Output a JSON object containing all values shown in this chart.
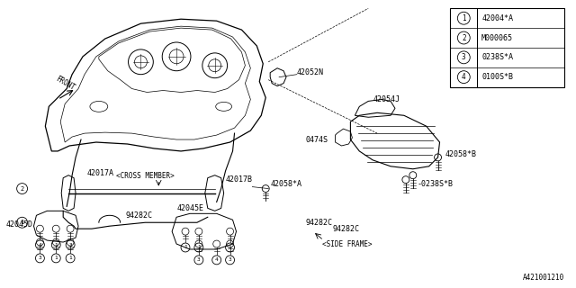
{
  "bg_color": "#ffffff",
  "line_color": "#000000",
  "fig_width": 6.4,
  "fig_height": 3.2,
  "dpi": 100,
  "legend_items": [
    {
      "num": "1",
      "code": "42004*A"
    },
    {
      "num": "2",
      "code": "M000065"
    },
    {
      "num": "3",
      "code": "0238S*A"
    },
    {
      "num": "4",
      "code": "0100S*B"
    }
  ],
  "footer_text": "A421001210"
}
